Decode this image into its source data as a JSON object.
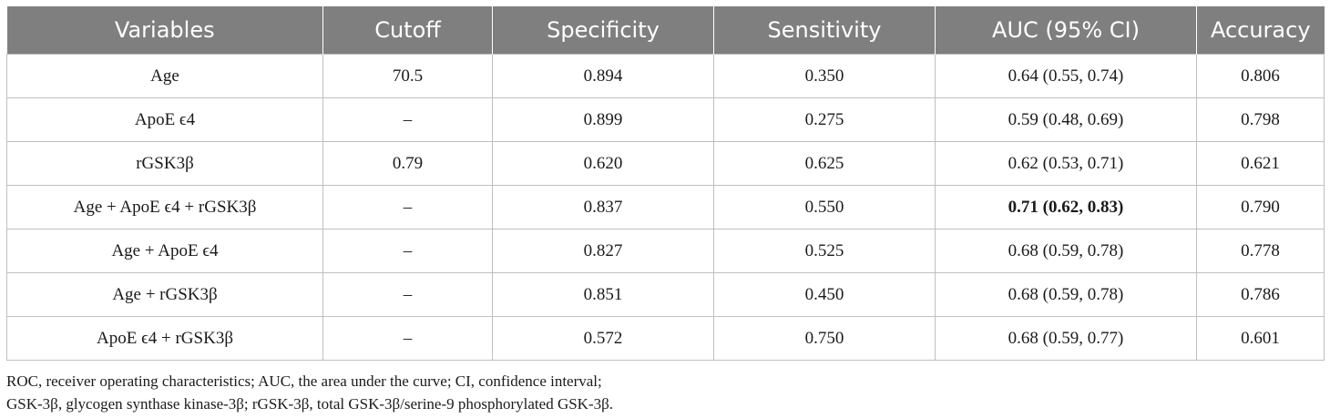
{
  "table": {
    "headers": [
      "Variables",
      "Cutoff",
      "Specificity",
      "Sensitivity",
      "AUC (95% CI)",
      "Accuracy"
    ],
    "rows": [
      {
        "variables": "Age",
        "cutoff": "70.5",
        "specificity": "0.894",
        "sensitivity": "0.350",
        "auc": "0.64 (0.55, 0.74)",
        "accuracy": "0.806",
        "auc_bold": false
      },
      {
        "variables": "ApoE ϵ4",
        "cutoff": "–",
        "specificity": "0.899",
        "sensitivity": "0.275",
        "auc": "0.59 (0.48, 0.69)",
        "accuracy": "0.798",
        "auc_bold": false
      },
      {
        "variables": "rGSK3β",
        "cutoff": "0.79",
        "specificity": "0.620",
        "sensitivity": "0.625",
        "auc": "0.62 (0.53, 0.71)",
        "accuracy": "0.621",
        "auc_bold": false
      },
      {
        "variables": "Age + ApoE ϵ4 + rGSK3β",
        "cutoff": "–",
        "specificity": "0.837",
        "sensitivity": "0.550",
        "auc": "0.71 (0.62, 0.83)",
        "accuracy": "0.790",
        "auc_bold": true
      },
      {
        "variables": "Age + ApoE ϵ4",
        "cutoff": "–",
        "specificity": "0.827",
        "sensitivity": "0.525",
        "auc": "0.68 (0.59, 0.78)",
        "accuracy": "0.778",
        "auc_bold": false
      },
      {
        "variables": "Age + rGSK3β",
        "cutoff": "–",
        "specificity": "0.851",
        "sensitivity": "0.450",
        "auc": "0.68 (0.59, 0.78)",
        "accuracy": "0.786",
        "auc_bold": false
      },
      {
        "variables": "ApoE ϵ4 + rGSK3β",
        "cutoff": "–",
        "specificity": "0.572",
        "sensitivity": "0.750",
        "auc": "0.68 (0.59, 0.77)",
        "accuracy": "0.601",
        "auc_bold": false
      }
    ]
  },
  "footnote": {
    "line1": "ROC, receiver operating characteristics; AUC, the area under the curve; CI, confidence interval;",
    "line2": "GSK-3β, glycogen synthase kinase-3β; rGSK-3β, total GSK-3β/serine-9 phosphorylated GSK-3β."
  },
  "colors": {
    "header_bg": "#7f7f7f",
    "header_text": "#ffffff",
    "grid": "#bfbfbf"
  }
}
